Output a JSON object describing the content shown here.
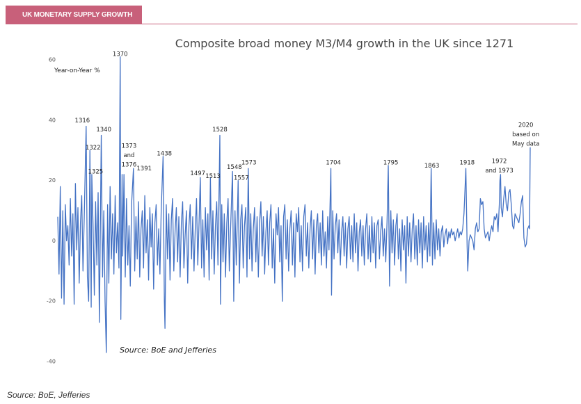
{
  "header": {
    "tag": "UK MONETARY SUPPLY GROWTH"
  },
  "chart_data": {
    "type": "line",
    "title": "Composite broad money M3/M4 growth in the UK since 1271",
    "ylabel": "Year-on-Year  %",
    "note": "Source: BoE and Jefferies",
    "xlim": [
      1271,
      2020
    ],
    "ylim": [
      -40,
      60
    ],
    "yticks": [
      -40,
      -20,
      0,
      20,
      40,
      60
    ],
    "grid": false,
    "x": [
      1271,
      1273,
      1275,
      1277,
      1279,
      1281,
      1283,
      1285,
      1287,
      1289,
      1291,
      1293,
      1295,
      1297,
      1299,
      1301,
      1303,
      1305,
      1307,
      1309,
      1311,
      1313,
      1316,
      1318,
      1320,
      1322,
      1324,
      1325,
      1327,
      1329,
      1331,
      1333,
      1335,
      1337,
      1340,
      1342,
      1344,
      1346,
      1348,
      1350,
      1352,
      1354,
      1356,
      1358,
      1360,
      1362,
      1364,
      1366,
      1368,
      1370,
      1371,
      1373,
      1374,
      1376,
      1378,
      1380,
      1382,
      1384,
      1386,
      1388,
      1391,
      1393,
      1395,
      1397,
      1399,
      1401,
      1403,
      1405,
      1407,
      1409,
      1411,
      1413,
      1415,
      1417,
      1419,
      1421,
      1423,
      1425,
      1427,
      1429,
      1431,
      1433,
      1435,
      1438,
      1440,
      1441,
      1443,
      1445,
      1447,
      1449,
      1451,
      1453,
      1455,
      1457,
      1459,
      1461,
      1463,
      1465,
      1467,
      1469,
      1471,
      1473,
      1475,
      1477,
      1479,
      1481,
      1483,
      1485,
      1487,
      1489,
      1491,
      1493,
      1495,
      1497,
      1499,
      1501,
      1503,
      1505,
      1507,
      1509,
      1511,
      1513,
      1515,
      1517,
      1519,
      1521,
      1523,
      1525,
      1528,
      1529,
      1531,
      1533,
      1535,
      1537,
      1539,
      1541,
      1543,
      1545,
      1548,
      1550,
      1552,
      1554,
      1557,
      1559,
      1561,
      1563,
      1565,
      1567,
      1569,
      1571,
      1573,
      1575,
      1577,
      1579,
      1581,
      1583,
      1585,
      1587,
      1589,
      1591,
      1593,
      1595,
      1597,
      1599,
      1601,
      1603,
      1605,
      1607,
      1609,
      1611,
      1613,
      1615,
      1617,
      1619,
      1621,
      1623,
      1625,
      1627,
      1629,
      1631,
      1633,
      1635,
      1637,
      1639,
      1641,
      1643,
      1645,
      1647,
      1649,
      1651,
      1653,
      1655,
      1657,
      1659,
      1661,
      1663,
      1665,
      1667,
      1669,
      1671,
      1673,
      1675,
      1677,
      1679,
      1681,
      1683,
      1685,
      1687,
      1689,
      1691,
      1693,
      1695,
      1697,
      1699,
      1701,
      1704,
      1705,
      1707,
      1709,
      1711,
      1713,
      1715,
      1717,
      1719,
      1721,
      1723,
      1725,
      1727,
      1729,
      1731,
      1733,
      1735,
      1737,
      1739,
      1741,
      1743,
      1745,
      1747,
      1749,
      1751,
      1753,
      1755,
      1757,
      1759,
      1761,
      1763,
      1765,
      1767,
      1769,
      1771,
      1773,
      1775,
      1777,
      1779,
      1781,
      1783,
      1785,
      1787,
      1789,
      1791,
      1793,
      1795,
      1797,
      1799,
      1801,
      1803,
      1805,
      1807,
      1809,
      1811,
      1813,
      1815,
      1817,
      1819,
      1821,
      1823,
      1825,
      1827,
      1829,
      1831,
      1833,
      1835,
      1837,
      1839,
      1841,
      1843,
      1845,
      1847,
      1849,
      1851,
      1853,
      1855,
      1857,
      1859,
      1861,
      1863,
      1865,
      1867,
      1869,
      1871,
      1873,
      1875,
      1877,
      1879,
      1881,
      1883,
      1885,
      1887,
      1889,
      1891,
      1893,
      1895,
      1897,
      1899,
      1901,
      1903,
      1905,
      1907,
      1909,
      1911,
      1913,
      1915,
      1918,
      1920,
      1921,
      1923,
      1925,
      1927,
      1929,
      1931,
      1933,
      1935,
      1937,
      1939,
      1941,
      1943,
      1945,
      1947,
      1949,
      1951,
      1953,
      1955,
      1957,
      1959,
      1961,
      1963,
      1965,
      1967,
      1969,
      1971,
      1972,
      1973,
      1974,
      1976,
      1978,
      1980,
      1982,
      1984,
      1986,
      1988,
      1990,
      1992,
      1994,
      1996,
      1998,
      2000,
      2002,
      2004,
      2006,
      2008,
      2010,
      2012,
      2014,
      2016,
      2018,
      2019,
      2020
    ],
    "series": [
      {
        "color": "#4472c4",
        "values": [
          8,
          -11,
          18,
          -19,
          10,
          -21,
          12,
          0,
          5,
          -8,
          14,
          -5,
          9,
          -21,
          19,
          -3,
          11,
          -14,
          6,
          15,
          -10,
          8,
          38,
          -12,
          -20,
          30,
          -22,
          22,
          5,
          -18,
          13,
          -8,
          16,
          -27,
          35,
          -12,
          10,
          -20,
          -37,
          12,
          -14,
          18,
          -6,
          9,
          -11,
          15,
          -4,
          6,
          -9,
          61,
          -26,
          22,
          -5,
          22,
          -12,
          14,
          -8,
          5,
          -15,
          12,
          24,
          -10,
          8,
          -6,
          13,
          -12,
          4,
          10,
          -9,
          15,
          -4,
          7,
          -13,
          11,
          -2,
          9,
          -16,
          6,
          12,
          -8,
          4,
          -11,
          10,
          28,
          -20,
          -29,
          12,
          -6,
          9,
          -13,
          7,
          14,
          -10,
          3,
          11,
          -7,
          8,
          -12,
          6,
          13,
          -9,
          2,
          10,
          -14,
          5,
          12,
          -6,
          8,
          -10,
          4,
          14,
          -8,
          6,
          21,
          -9,
          7,
          -12,
          11,
          -3,
          9,
          -13,
          21,
          -6,
          10,
          -11,
          5,
          13,
          -8,
          35,
          -21,
          12,
          -7,
          9,
          -12,
          6,
          14,
          -10,
          4,
          23,
          -20,
          10,
          -8,
          20,
          -14,
          7,
          12,
          -9,
          5,
          11,
          -12,
          24,
          -6,
          9,
          -10,
          4,
          11,
          -7,
          8,
          -12,
          6,
          13,
          -5,
          8,
          -11,
          3,
          10,
          -8,
          6,
          12,
          -9,
          4,
          -14,
          9,
          2,
          11,
          -7,
          5,
          -20,
          8,
          12,
          -6,
          7,
          -10,
          4,
          10,
          -8,
          6,
          -12,
          9,
          3,
          11,
          -7,
          5,
          -10,
          8,
          12,
          -5,
          6,
          -9,
          4,
          10,
          -6,
          7,
          -11,
          5,
          9,
          -4,
          6,
          -8,
          10,
          -5,
          3,
          -9,
          8,
          -3,
          24,
          -18,
          10,
          -6,
          5,
          9,
          -4,
          7,
          -8,
          3,
          8,
          -5,
          6,
          -9,
          4,
          8,
          -6,
          5,
          -7,
          9,
          -4,
          6,
          -10,
          3,
          7,
          -5,
          5,
          -8,
          4,
          9,
          -6,
          5,
          -7,
          8,
          -4,
          6,
          -9,
          5,
          7,
          -6,
          3,
          8,
          -5,
          4,
          -7,
          6,
          25,
          -15,
          10,
          -4,
          7,
          -8,
          5,
          9,
          -6,
          4,
          -10,
          7,
          -3,
          5,
          -14,
          8,
          -5,
          6,
          -7,
          4,
          9,
          -6,
          5,
          -8,
          7,
          -4,
          6,
          -9,
          8,
          -3,
          5,
          -7,
          6,
          -5,
          24,
          -8,
          6,
          -6,
          7,
          -3,
          4,
          -5,
          3,
          5,
          -2,
          2,
          4,
          -1,
          3,
          1,
          4,
          2,
          3,
          0,
          2,
          4,
          1,
          3,
          2,
          4,
          9,
          24,
          -2,
          -10,
          0,
          2,
          1,
          0,
          -3,
          4,
          6,
          3,
          4,
          14,
          12,
          13,
          4,
          1,
          2,
          3,
          0,
          3,
          5,
          3,
          8,
          7,
          9,
          3,
          12,
          20,
          22,
          11,
          8,
          14,
          18,
          12,
          10,
          16,
          17,
          12,
          5,
          4,
          9,
          8,
          7,
          6,
          9,
          13,
          15,
          1,
          -2,
          -1,
          4,
          5,
          4,
          31
        ]
      }
    ],
    "annotations": [
      {
        "lines": [
          "1370"
        ],
        "x": 1370,
        "y": 62
      },
      {
        "lines": [
          "1316"
        ],
        "x": 1310,
        "y": 40
      },
      {
        "lines": [
          "1340"
        ],
        "x": 1344,
        "y": 37
      },
      {
        "lines": [
          "1322"
        ],
        "x": 1327,
        "y": 31
      },
      {
        "lines": [
          "1325"
        ],
        "x": 1331,
        "y": 23
      },
      {
        "lines": [
          "1373",
          "and",
          "1376"
        ],
        "x": 1384,
        "y": 31.5
      },
      {
        "lines": [
          "1391"
        ],
        "x": 1408,
        "y": 24
      },
      {
        "lines": [
          "1438"
        ],
        "x": 1440,
        "y": 29
      },
      {
        "lines": [
          "1497"
        ],
        "x": 1493,
        "y": 22.5
      },
      {
        "lines": [
          "1513"
        ],
        "x": 1517,
        "y": 21.5
      },
      {
        "lines": [
          "1528"
        ],
        "x": 1528,
        "y": 37
      },
      {
        "lines": [
          "1548"
        ],
        "x": 1551,
        "y": 24.5
      },
      {
        "lines": [
          "1557"
        ],
        "x": 1562,
        "y": 21
      },
      {
        "lines": [
          "1573"
        ],
        "x": 1574,
        "y": 26
      },
      {
        "lines": [
          "1704"
        ],
        "x": 1708,
        "y": 26
      },
      {
        "lines": [
          "1795"
        ],
        "x": 1799,
        "y": 26
      },
      {
        "lines": [
          "1863"
        ],
        "x": 1864,
        "y": 25
      },
      {
        "lines": [
          "1918"
        ],
        "x": 1920,
        "y": 26
      },
      {
        "lines": [
          "1972",
          "and 1973"
        ],
        "x": 1971,
        "y": 26.5
      },
      {
        "lines": [
          "2020",
          "based on",
          "May data"
        ],
        "x": 2013,
        "y": 38.5
      }
    ]
  },
  "footer": {
    "source": "Source: BoE, Jefferies"
  }
}
